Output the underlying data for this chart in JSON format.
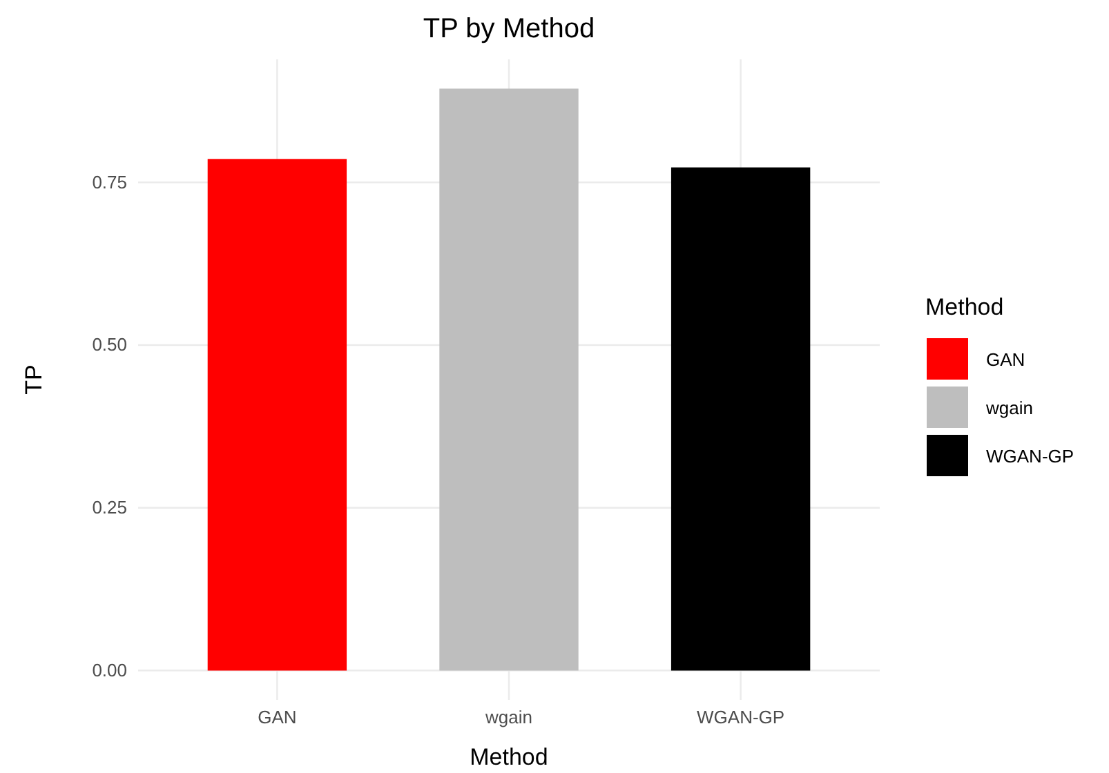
{
  "chart_data": {
    "type": "bar",
    "title": "TP by Method",
    "xlabel": "Method",
    "ylabel": "TP",
    "legend_title": "Method",
    "categories": [
      "GAN",
      "wgain",
      "WGAN-GP"
    ],
    "series": [
      {
        "name": "GAN",
        "color": "#ff0000",
        "values": [
          0.786,
          null,
          null
        ]
      },
      {
        "name": "wgain",
        "color": "#bebebe",
        "values": [
          null,
          0.894,
          null
        ]
      },
      {
        "name": "WGAN-GP",
        "color": "#000000",
        "values": [
          null,
          null,
          0.773
        ]
      }
    ],
    "ylim": [
      -0.045,
      0.939
    ],
    "yticks": [
      {
        "value": 0,
        "label": "0.00"
      },
      {
        "value": 0.25,
        "label": "0.25"
      },
      {
        "value": 0.5,
        "label": "0.50"
      },
      {
        "value": 0.75,
        "label": "0.75"
      }
    ],
    "grid": true,
    "legend": "right"
  }
}
